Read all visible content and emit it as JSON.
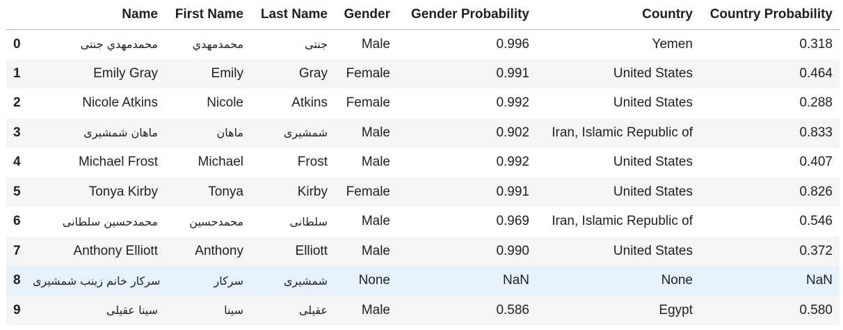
{
  "columns": [
    "Name",
    "First Name",
    "Last Name",
    "Gender",
    "Gender Probability",
    "Country",
    "Country Probability"
  ],
  "rows": [
    {
      "index": "0",
      "name": "محمدمهدي جنتی",
      "first": "محمدمهدي",
      "last": "جنتی",
      "gender": "Male",
      "gender_prob": "0.996",
      "country": "Yemen",
      "country_prob": "0.318"
    },
    {
      "index": "1",
      "name": "Emily Gray",
      "first": "Emily",
      "last": "Gray",
      "gender": "Female",
      "gender_prob": "0.991",
      "country": "United States",
      "country_prob": "0.464"
    },
    {
      "index": "2",
      "name": "Nicole Atkins",
      "first": "Nicole",
      "last": "Atkins",
      "gender": "Female",
      "gender_prob": "0.992",
      "country": "United States",
      "country_prob": "0.288"
    },
    {
      "index": "3",
      "name": "ماهان شمشیری",
      "first": "ماهان",
      "last": "شمشیری",
      "gender": "Male",
      "gender_prob": "0.902",
      "country": "Iran, Islamic Republic of",
      "country_prob": "0.833"
    },
    {
      "index": "4",
      "name": "Michael Frost",
      "first": "Michael",
      "last": "Frost",
      "gender": "Male",
      "gender_prob": "0.992",
      "country": "United States",
      "country_prob": "0.407"
    },
    {
      "index": "5",
      "name": "Tonya Kirby",
      "first": "Tonya",
      "last": "Kirby",
      "gender": "Female",
      "gender_prob": "0.991",
      "country": "United States",
      "country_prob": "0.826"
    },
    {
      "index": "6",
      "name": "محمدحسین سلطانی",
      "first": "محمدحسین",
      "last": "سلطانی",
      "gender": "Male",
      "gender_prob": "0.969",
      "country": "Iran, Islamic Republic of",
      "country_prob": "0.546"
    },
    {
      "index": "7",
      "name": "Anthony Elliott",
      "first": "Anthony",
      "last": "Elliott",
      "gender": "Male",
      "gender_prob": "0.990",
      "country": "United States",
      "country_prob": "0.372"
    },
    {
      "index": "8",
      "name": "سرکار خانم زینب شمشیری",
      "first": "سرکار",
      "last": "شمشیری",
      "gender": "None",
      "gender_prob": "NaN",
      "country": "None",
      "country_prob": "NaN",
      "hovered": true
    },
    {
      "index": "9",
      "name": "سینا عقیلی",
      "first": "سینا",
      "last": "عقیلی",
      "gender": "Male",
      "gender_prob": "0.586",
      "country": "Egypt",
      "country_prob": "0.580"
    }
  ],
  "colors": {
    "header_border": "#b5b5b5",
    "row_striped": "#f5f5f5",
    "row_hover": "#e5f1fb",
    "text": "#1f1f1f"
  }
}
